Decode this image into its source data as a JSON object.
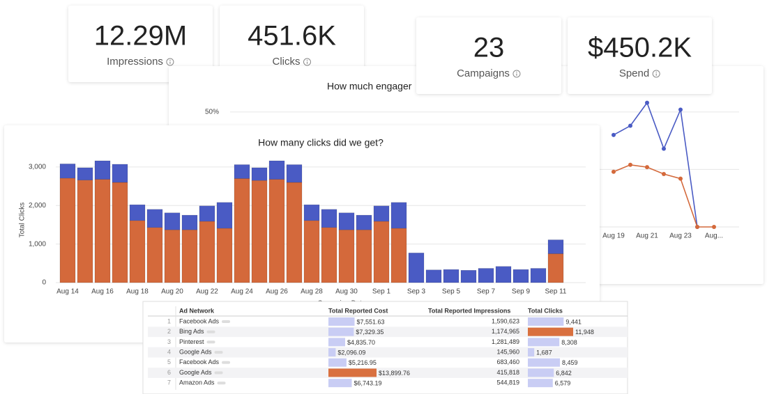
{
  "kpis": [
    {
      "value": "12.29M",
      "label": "Impressions"
    },
    {
      "value": "451.6K",
      "label": "Clicks"
    },
    {
      "value": "23",
      "label": "Campaigns"
    },
    {
      "value": "$450.2K",
      "label": "Spend"
    }
  ],
  "chart_data": [
    {
      "type": "bar",
      "stacked": true,
      "title": "How many clicks did we get?",
      "y_label": "Total Clicks",
      "x_label": "Campaign Date",
      "categories": [
        "Aug 14",
        null,
        "Aug 16",
        null,
        "Aug 18",
        null,
        "Aug 20",
        null,
        "Aug 22",
        null,
        "Aug 24",
        null,
        "Aug 26",
        null,
        "Aug 28",
        null,
        "Aug 30",
        null,
        "Sep 1",
        null,
        "Sep 3",
        null,
        "Sep 5",
        null,
        "Sep 7",
        null,
        "Sep 9",
        null,
        "Sep 11"
      ],
      "series": [
        {
          "color": "#d4693b",
          "values": [
            2710,
            2660,
            2680,
            2600,
            1610,
            1430,
            1370,
            1370,
            1590,
            1410,
            2700,
            2650,
            2680,
            2600,
            1610,
            1430,
            1370,
            1370,
            1590,
            1410,
            0,
            0,
            0,
            0,
            0,
            0,
            0,
            0,
            750
          ]
        },
        {
          "color": "#4a5bc4",
          "values": [
            370,
            320,
            480,
            470,
            410,
            470,
            440,
            380,
            400,
            670,
            360,
            330,
            480,
            460,
            410,
            470,
            440,
            380,
            400,
            670,
            770,
            330,
            340,
            320,
            370,
            420,
            340,
            370,
            360
          ]
        }
      ],
      "ylim": [
        0,
        3250
      ],
      "yticks": [
        0,
        {
          "value": 1000,
          "label": "1,000"
        },
        {
          "value": 2000,
          "label": "2,000"
        },
        {
          "value": 3000,
          "label": "3,000"
        }
      ],
      "grid": true
    },
    {
      "type": "line",
      "title": "How much engager",
      "categories": [
        "Aug 19",
        null,
        "Aug 21",
        null,
        "Aug 23",
        null,
        "Aug..."
      ],
      "series": [
        {
          "color": "#4a5bc4",
          "values": [
            40,
            44,
            54,
            34,
            51,
            0,
            null
          ]
        },
        {
          "color": "#d4693b",
          "values": [
            24,
            27,
            26,
            23,
            21,
            0,
            0
          ]
        }
      ],
      "ylim": [
        0,
        56
      ],
      "yticks": [
        {
          "value": 50,
          "label": "50%"
        }
      ],
      "grid": true
    }
  ],
  "table": {
    "columns": [
      "Ad Network",
      "Total Reported Cost",
      "Total Reported Impressions",
      "Total Clicks"
    ],
    "rows": [
      {
        "index": 1,
        "network": "Facebook Ads",
        "cost": {
          "value": 7551.63,
          "label": "$7,551.63"
        },
        "impressions": "1,590,623",
        "clicks": {
          "value": 9441,
          "label": "9,441"
        }
      },
      {
        "index": 2,
        "network": "Bing Ads",
        "cost": {
          "value": 7329.35,
          "label": "$7,329.35"
        },
        "impressions": "1,174,965",
        "clicks": {
          "value": 11948,
          "label": "11,948"
        }
      },
      {
        "index": 3,
        "network": "Pinterest",
        "cost": {
          "value": 4835.7,
          "label": "$4,835.70"
        },
        "impressions": "1,281,489",
        "clicks": {
          "value": 8308,
          "label": "8,308"
        }
      },
      {
        "index": 4,
        "network": "Google Ads",
        "cost": {
          "value": 2096.09,
          "label": "$2,096.09"
        },
        "impressions": "145,960",
        "clicks": {
          "value": 1687,
          "label": "1,687"
        }
      },
      {
        "index": 5,
        "network": "Facebook Ads",
        "cost": {
          "value": 5216.95,
          "label": "$5,216.95"
        },
        "impressions": "683,460",
        "clicks": {
          "value": 8459,
          "label": "8,459"
        }
      },
      {
        "index": 6,
        "network": "Google Ads",
        "cost": {
          "value": 13899.76,
          "label": "$13,899.76"
        },
        "impressions": "415,818",
        "clicks": {
          "value": 6842,
          "label": "6,842"
        }
      },
      {
        "index": 7,
        "network": "Amazon Ads",
        "cost": {
          "value": 6743.19,
          "label": "$6,743.19"
        },
        "impressions": "544,819",
        "clicks": {
          "value": 6579,
          "label": "6,579"
        }
      }
    ],
    "bar_color": "#c9cdf4",
    "max_color": "#d9703f"
  }
}
